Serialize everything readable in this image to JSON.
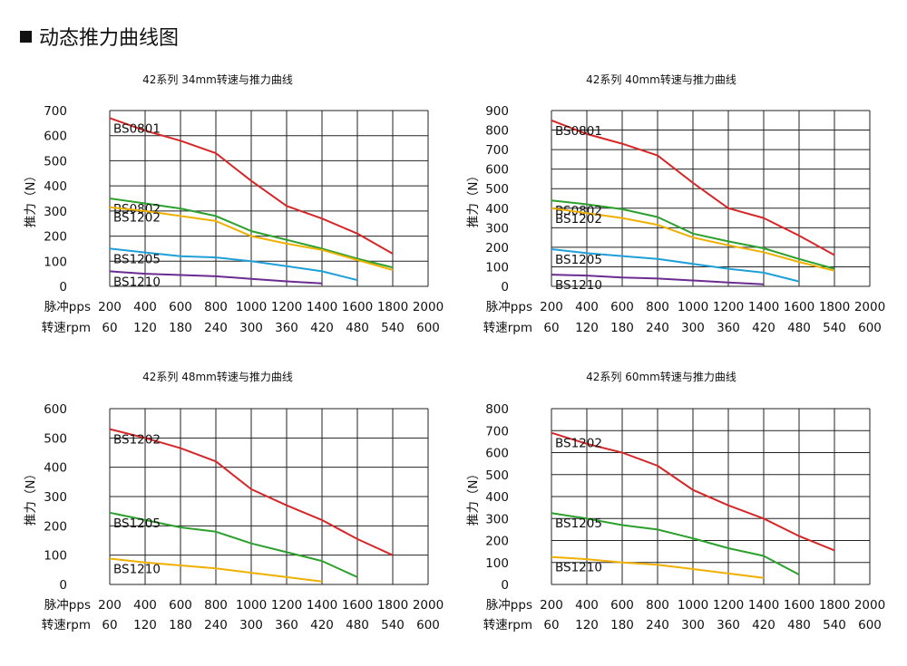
{
  "page_title": "动态推力曲线图",
  "chart_data": [
    {
      "type": "line",
      "title": "42系列 34mm转速与推力曲线",
      "ylabel": "推力（N）",
      "ylim": [
        0,
        700
      ],
      "yticks": [
        0,
        100,
        200,
        300,
        400,
        500,
        600,
        700
      ],
      "x_row1_label": "脉冲pps",
      "x_row1": [
        "200",
        "400",
        "600",
        "800",
        "1000",
        "1200",
        "1400",
        "1600",
        "1800",
        "2000"
      ],
      "x_row2_label": "转速rpm",
      "x_row2": [
        "60",
        "120",
        "180",
        "240",
        "300",
        "360",
        "420",
        "480",
        "540",
        "600"
      ],
      "series": [
        {
          "name": "BS0801",
          "color": "#d62728",
          "x": [
            200,
            400,
            600,
            800,
            1000,
            1200,
            1400,
            1600,
            1800
          ],
          "y": [
            670,
            620,
            580,
            530,
            420,
            320,
            270,
            210,
            130
          ]
        },
        {
          "name": "BS0802",
          "color": "#2ca02c",
          "x": [
            200,
            400,
            600,
            800,
            1000,
            1200,
            1400,
            1600,
            1800
          ],
          "y": [
            350,
            330,
            310,
            280,
            220,
            185,
            150,
            110,
            75
          ]
        },
        {
          "name": "BS1202",
          "color": "#f0b000",
          "x": [
            200,
            400,
            600,
            800,
            1000,
            1200,
            1400,
            1600,
            1800
          ],
          "y": [
            315,
            300,
            280,
            260,
            200,
            170,
            145,
            105,
            65
          ]
        },
        {
          "name": "BS1205",
          "color": "#1f9fd8",
          "x": [
            200,
            400,
            600,
            800,
            1000,
            1200,
            1400,
            1600
          ],
          "y": [
            150,
            135,
            120,
            115,
            100,
            80,
            60,
            25
          ]
        },
        {
          "name": "BS1210",
          "color": "#6a2c91",
          "x": [
            200,
            400,
            600,
            800,
            1000,
            1200,
            1400
          ],
          "y": [
            60,
            50,
            45,
            40,
            30,
            20,
            12
          ]
        }
      ]
    },
    {
      "type": "line",
      "title": "42系列 40mm转速与推力曲线",
      "ylabel": "推力（N）",
      "ylim": [
        0,
        900
      ],
      "yticks": [
        0,
        100,
        200,
        300,
        400,
        500,
        600,
        700,
        800,
        900
      ],
      "x_row1_label": "脉冲pps",
      "x_row1": [
        "200",
        "400",
        "600",
        "800",
        "1000",
        "1200",
        "1400",
        "1600",
        "1800",
        "2000"
      ],
      "x_row2_label": "转速rpm",
      "x_row2": [
        "60",
        "120",
        "180",
        "240",
        "300",
        "360",
        "420",
        "480",
        "540",
        "600"
      ],
      "series": [
        {
          "name": "BS0801",
          "color": "#d62728",
          "x": [
            200,
            400,
            600,
            800,
            1000,
            1200,
            1400,
            1600,
            1800
          ],
          "y": [
            850,
            780,
            730,
            670,
            530,
            400,
            350,
            260,
            160
          ]
        },
        {
          "name": "BS0802",
          "color": "#2ca02c",
          "x": [
            200,
            400,
            600,
            800,
            1000,
            1200,
            1400,
            1600,
            1800
          ],
          "y": [
            440,
            420,
            395,
            355,
            270,
            230,
            195,
            140,
            90
          ]
        },
        {
          "name": "BS1202",
          "color": "#f0b000",
          "x": [
            200,
            400,
            600,
            800,
            1000,
            1200,
            1400,
            1600,
            1800
          ],
          "y": [
            400,
            375,
            350,
            315,
            250,
            210,
            175,
            125,
            80
          ]
        },
        {
          "name": "BS1205",
          "color": "#1f9fd8",
          "x": [
            200,
            400,
            600,
            800,
            1000,
            1200,
            1400,
            1600
          ],
          "y": [
            190,
            170,
            155,
            140,
            115,
            90,
            70,
            25
          ]
        },
        {
          "name": "BS1210",
          "color": "#6a2c91",
          "x": [
            200,
            400,
            600,
            800,
            1000,
            1200,
            1400
          ],
          "y": [
            60,
            55,
            45,
            40,
            30,
            20,
            10
          ]
        }
      ]
    },
    {
      "type": "line",
      "title": "42系列 48mm转速与推力曲线",
      "ylabel": "推力（N）",
      "ylim": [
        0,
        600
      ],
      "yticks": [
        0,
        100,
        200,
        300,
        400,
        500,
        600
      ],
      "x_row1_label": "脉冲pps",
      "x_row1": [
        "200",
        "400",
        "600",
        "800",
        "1000",
        "1200",
        "1400",
        "1600",
        "1800",
        "2000"
      ],
      "x_row2_label": "转速rpm",
      "x_row2": [
        "60",
        "120",
        "180",
        "240",
        "300",
        "360",
        "420",
        "480",
        "540",
        "600"
      ],
      "series": [
        {
          "name": "BS1202",
          "color": "#d62728",
          "x": [
            200,
            400,
            600,
            800,
            1000,
            1200,
            1400,
            1600,
            1800
          ],
          "y": [
            530,
            500,
            465,
            420,
            325,
            270,
            220,
            155,
            100
          ]
        },
        {
          "name": "BS1205",
          "color": "#2ca02c",
          "x": [
            200,
            400,
            600,
            800,
            1000,
            1200,
            1400,
            1600
          ],
          "y": [
            245,
            220,
            195,
            180,
            140,
            110,
            80,
            25
          ]
        },
        {
          "name": "BS1210",
          "color": "#f0b000",
          "x": [
            200,
            400,
            600,
            800,
            1000,
            1200,
            1400
          ],
          "y": [
            88,
            75,
            65,
            55,
            40,
            25,
            10
          ]
        }
      ]
    },
    {
      "type": "line",
      "title": "42系列 60mm转速与推力曲线",
      "ylabel": "推力（N）",
      "ylim": [
        0,
        800
      ],
      "yticks": [
        0,
        100,
        200,
        300,
        400,
        500,
        600,
        700,
        800
      ],
      "x_row1_label": "脉冲pps",
      "x_row1": [
        "200",
        "400",
        "600",
        "800",
        "1000",
        "1200",
        "1400",
        "1600",
        "1800",
        "2000"
      ],
      "x_row2_label": "转速rpm",
      "x_row2": [
        "60",
        "120",
        "180",
        "240",
        "300",
        "360",
        "420",
        "480",
        "540",
        "600"
      ],
      "series": [
        {
          "name": "BS1202",
          "color": "#d62728",
          "x": [
            200,
            400,
            600,
            800,
            1000,
            1200,
            1400,
            1600,
            1800
          ],
          "y": [
            690,
            640,
            600,
            540,
            430,
            360,
            300,
            220,
            155
          ]
        },
        {
          "name": "BS1205",
          "color": "#2ca02c",
          "x": [
            200,
            400,
            600,
            800,
            1000,
            1200,
            1400,
            1600
          ],
          "y": [
            325,
            300,
            270,
            250,
            210,
            165,
            130,
            45
          ]
        },
        {
          "name": "BS1210",
          "color": "#f0b000",
          "x": [
            200,
            400,
            600,
            800,
            1000,
            1200,
            1400
          ],
          "y": [
            125,
            115,
            100,
            90,
            70,
            50,
            30
          ]
        }
      ]
    }
  ]
}
